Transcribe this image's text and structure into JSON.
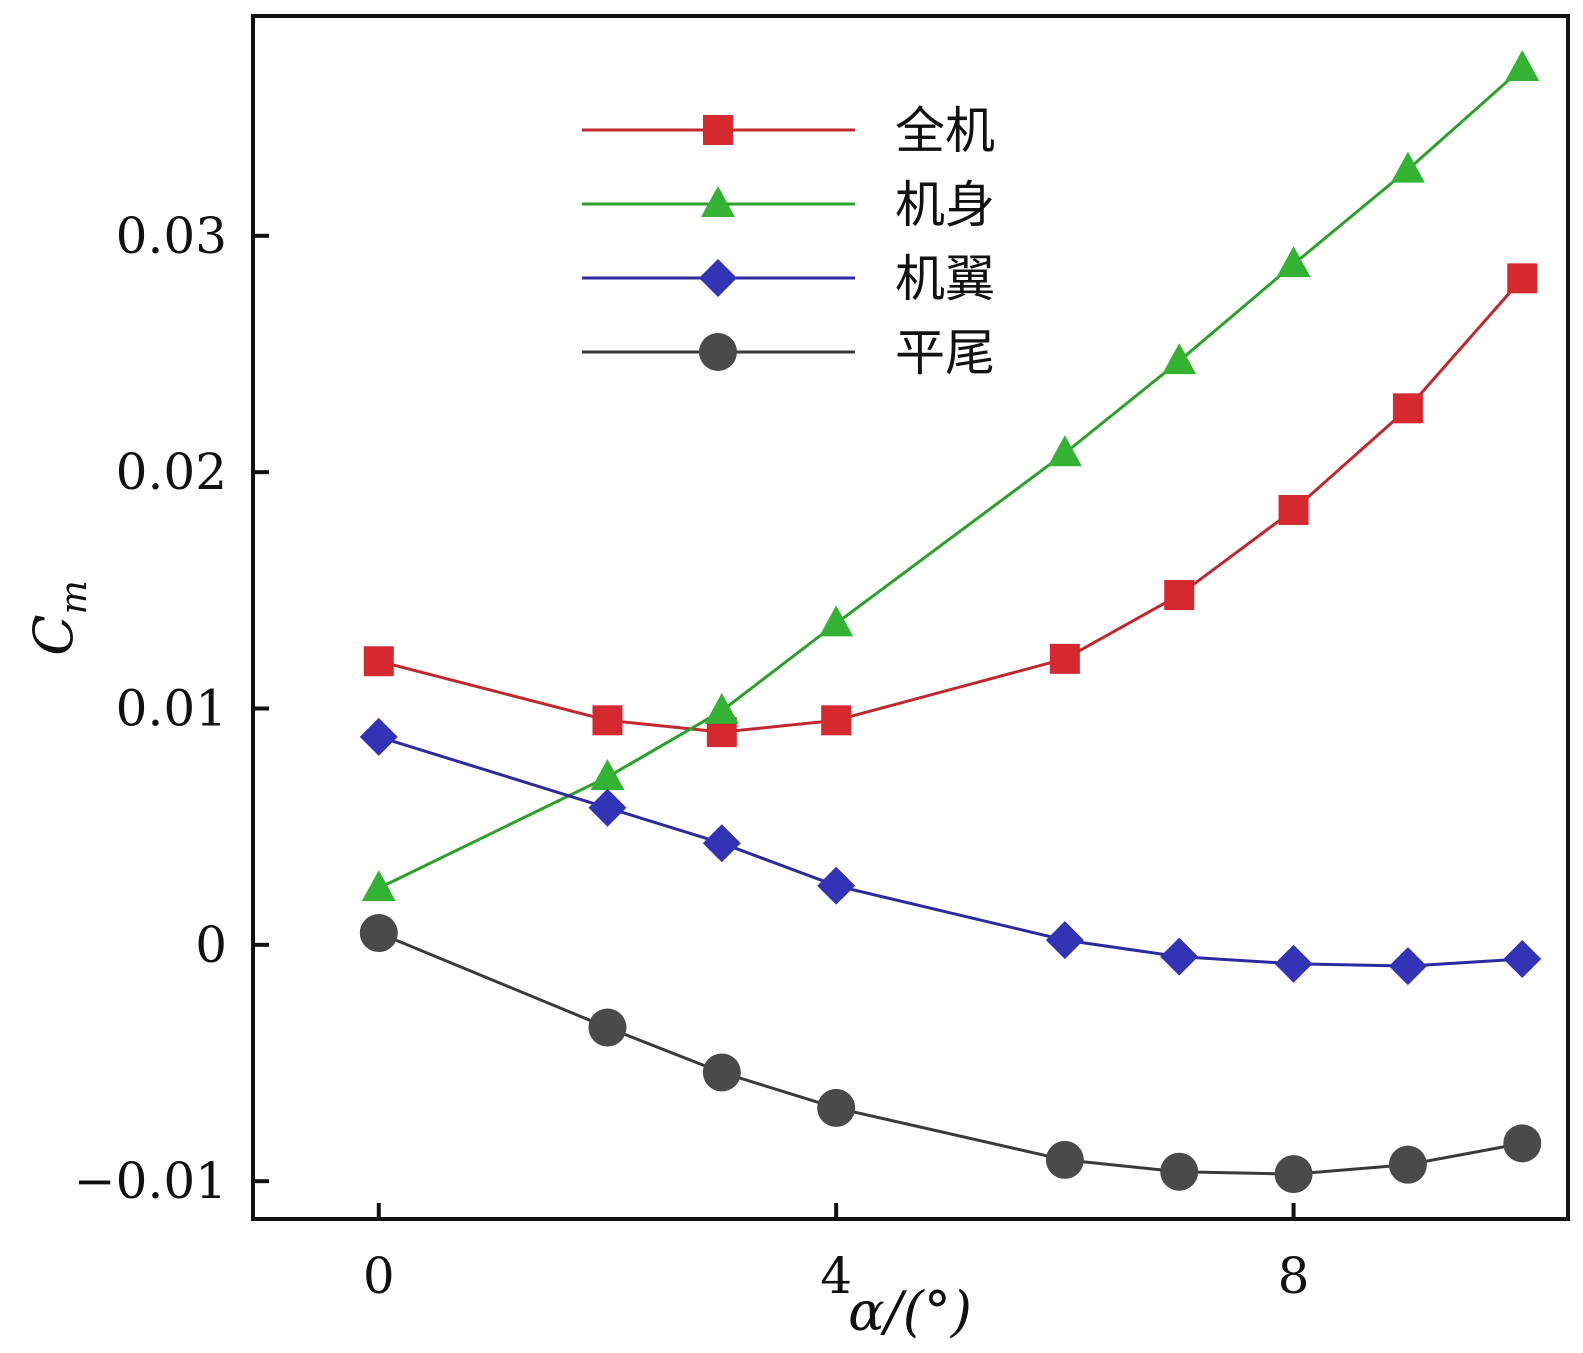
{
  "chart_data": {
    "type": "line",
    "title": "",
    "xlabel": "α/(°)",
    "ylabel": "Cm",
    "ylabel_main": "C",
    "ylabel_sub": "m",
    "xlim": [
      -1.1,
      10.4
    ],
    "ylim": [
      -0.0116,
      0.0393
    ],
    "xticks": [
      0,
      4,
      8
    ],
    "xtick_labels": [
      "0",
      "4",
      "8"
    ],
    "yticks": [
      -0.01,
      0,
      0.01,
      0.02,
      0.03
    ],
    "ytick_labels": [
      "−0.01",
      "0",
      "0.01",
      "0.02",
      "0.03"
    ],
    "legend_position": "top-center",
    "x": [
      0,
      2,
      3,
      4,
      6,
      7,
      8,
      9,
      10
    ],
    "series": [
      {
        "name": "全机",
        "marker": "square",
        "color": "#c0282d",
        "marker_color": "#d42a2f",
        "values": [
          0.012,
          0.0095,
          0.009,
          0.0095,
          0.0121,
          0.0148,
          0.0184,
          0.0227,
          0.0282
        ]
      },
      {
        "name": "机身",
        "marker": "triangle",
        "color": "#2ca02c",
        "marker_color": "#33b233",
        "values": [
          0.0024,
          0.0071,
          0.0099,
          0.0136,
          0.0208,
          0.0247,
          0.0288,
          0.0328,
          0.0371
        ]
      },
      {
        "name": "机翼",
        "marker": "diamond",
        "color": "#2b2b9f",
        "marker_color": "#3333b5",
        "values": [
          0.0088,
          0.0058,
          0.0043,
          0.0025,
          0.0002,
          -0.0005,
          -0.0008,
          -0.0009,
          -0.0006
        ]
      },
      {
        "name": "平尾",
        "marker": "circle",
        "color": "#3a3a3a",
        "marker_color": "#4a4a4a",
        "values": [
          0.0005,
          -0.0035,
          -0.0054,
          -0.0069,
          -0.0091,
          -0.0096,
          -0.0097,
          -0.0093,
          -0.0084
        ]
      }
    ]
  }
}
